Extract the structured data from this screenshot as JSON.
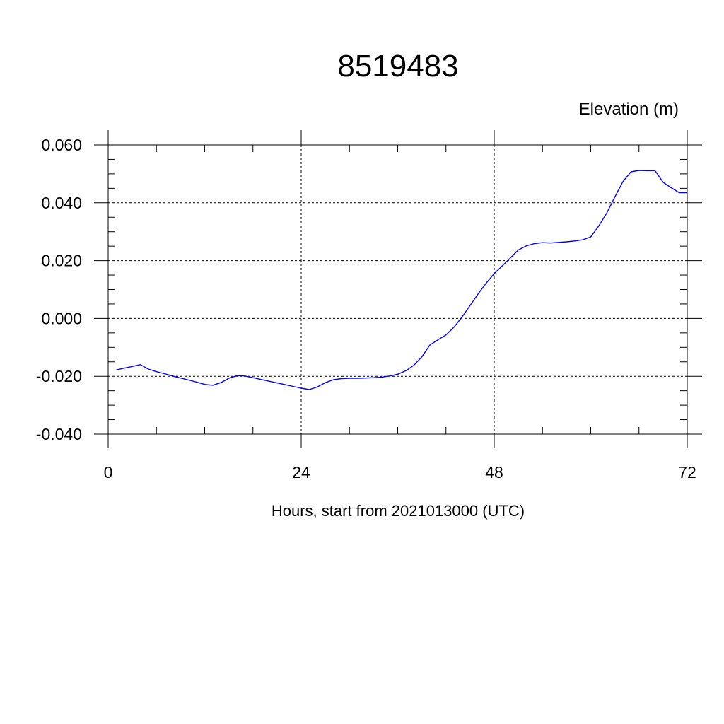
{
  "chart_data": {
    "type": "line",
    "title": "8519483",
    "ylabel": "Elevation (m)",
    "xlabel": "Hours, start from 2021013000 (UTC)",
    "xlim": [
      0,
      72
    ],
    "ylim": [
      -0.04,
      0.06
    ],
    "xticks": [
      0,
      24,
      48,
      72
    ],
    "xtick_labels": [
      "0",
      "24",
      "48",
      "72"
    ],
    "yticks": [
      -0.04,
      -0.02,
      0.0,
      0.02,
      0.04,
      0.06
    ],
    "ytick_labels": [
      "-0.040",
      "-0.020",
      "0.000",
      "0.020",
      "0.040",
      "0.060"
    ],
    "grid": true,
    "line_color": "#0000ff",
    "series": [
      {
        "x": [
          1,
          2,
          3,
          4,
          5,
          6,
          7,
          8,
          9,
          10,
          11,
          12,
          13,
          14,
          15,
          16,
          17,
          18,
          19,
          20,
          21,
          22,
          23,
          24,
          25,
          26,
          27,
          28,
          29,
          30,
          31,
          32,
          33,
          34,
          35,
          36,
          37,
          38,
          39,
          40,
          41,
          42,
          43,
          44,
          45,
          46,
          47,
          48,
          49,
          50,
          51,
          52,
          53,
          54,
          55,
          56,
          57,
          58,
          59,
          60,
          61,
          62,
          63,
          64,
          65,
          66,
          67,
          68,
          69,
          70,
          71,
          72
        ],
        "y": [
          -0.0178,
          -0.0172,
          -0.0166,
          -0.016,
          -0.0175,
          -0.0184,
          -0.0191,
          -0.0199,
          -0.0206,
          -0.0213,
          -0.022,
          -0.0228,
          -0.0231,
          -0.0222,
          -0.0207,
          -0.0198,
          -0.0199,
          -0.0205,
          -0.0211,
          -0.0217,
          -0.0223,
          -0.0229,
          -0.0235,
          -0.0241,
          -0.0246,
          -0.0237,
          -0.0222,
          -0.0212,
          -0.0208,
          -0.0207,
          -0.0207,
          -0.0206,
          -0.0205,
          -0.0203,
          -0.0199,
          -0.0193,
          -0.0181,
          -0.0162,
          -0.0133,
          -0.0092,
          -0.0074,
          -0.0057,
          -0.003,
          0.0005,
          0.0045,
          0.0085,
          0.0122,
          0.0155,
          0.0182,
          0.0209,
          0.0237,
          0.0251,
          0.0259,
          0.0262,
          0.0261,
          0.0263,
          0.0265,
          0.0268,
          0.0272,
          0.0282,
          0.032,
          0.0365,
          0.042,
          0.0473,
          0.0507,
          0.0512,
          0.0511,
          0.0511,
          0.0471,
          0.0452,
          0.0435,
          0.0435
        ]
      }
    ]
  }
}
